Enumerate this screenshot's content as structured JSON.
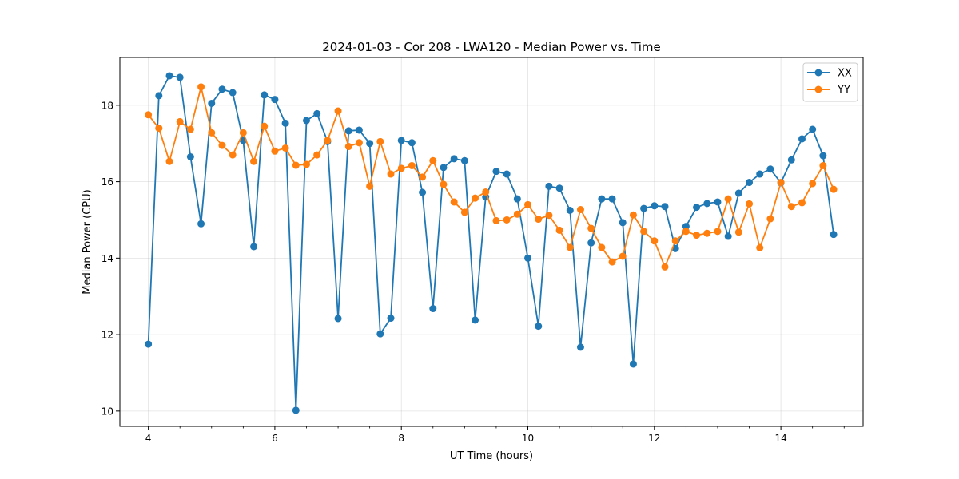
{
  "chart_data": {
    "type": "line",
    "title": "2024-01-03 - Cor 208 - LWA120 - Median Power vs. Time",
    "xlabel": "UT Time (hours)",
    "ylabel": "Median Power (CPU)",
    "xlim": [
      3.55,
      15.3
    ],
    "ylim": [
      9.6,
      19.25
    ],
    "xticks": [
      4,
      6,
      8,
      10,
      12,
      14
    ],
    "xtick_labels": [
      "4",
      "6",
      "8",
      "10",
      "12",
      "14"
    ],
    "yticks": [
      10,
      12,
      14,
      16,
      18
    ],
    "ytick_labels": [
      "10",
      "12",
      "14",
      "16",
      "18"
    ],
    "grid": true,
    "legend_position": "top-right",
    "x": [
      4.0,
      4.1667,
      4.3333,
      4.5,
      4.6667,
      4.8333,
      5.0,
      5.1667,
      5.3333,
      5.5,
      5.6667,
      5.8333,
      6.0,
      6.1667,
      6.3333,
      6.5,
      6.6667,
      6.8333,
      7.0,
      7.1667,
      7.3333,
      7.5,
      7.6667,
      7.8333,
      8.0,
      8.1667,
      8.3333,
      8.5,
      8.6667,
      8.8333,
      9.0,
      9.1667,
      9.3333,
      9.5,
      9.6667,
      9.8333,
      10.0,
      10.1667,
      10.3333,
      10.5,
      10.6667,
      10.8333,
      11.0,
      11.1667,
      11.3333,
      11.5,
      11.6667,
      11.8333,
      12.0,
      12.1667,
      12.3333,
      12.5,
      12.6667,
      12.8333,
      13.0,
      13.1667,
      13.3333,
      13.5,
      13.6667,
      13.8333,
      14.0,
      14.1667,
      14.3333,
      14.5,
      14.6667,
      14.8333
    ],
    "series": [
      {
        "name": "XX",
        "color": "#1f77b4",
        "values": [
          11.75,
          18.25,
          18.77,
          18.73,
          16.65,
          14.9,
          18.05,
          18.42,
          18.33,
          17.08,
          14.3,
          18.27,
          18.15,
          17.53,
          10.02,
          17.6,
          17.78,
          17.05,
          12.42,
          17.33,
          17.35,
          17.0,
          12.02,
          12.43,
          17.08,
          17.02,
          15.72,
          12.68,
          16.37,
          16.6,
          16.55,
          12.38,
          15.6,
          16.27,
          16.2,
          15.55,
          14.0,
          12.22,
          15.88,
          15.83,
          15.25,
          11.67,
          14.4,
          15.55,
          15.55,
          14.93,
          11.23,
          15.3,
          15.37,
          15.35,
          14.25,
          14.83,
          15.33,
          15.43,
          15.47,
          14.57,
          15.7,
          15.98,
          16.2,
          16.33,
          15.97,
          16.57,
          17.12,
          17.37,
          16.68,
          14.62
        ]
      },
      {
        "name": "YY",
        "color": "#ff7f0e",
        "values": [
          17.75,
          17.4,
          16.53,
          17.57,
          17.37,
          18.48,
          17.28,
          16.95,
          16.7,
          17.28,
          16.53,
          17.45,
          16.8,
          16.88,
          16.43,
          16.45,
          16.7,
          17.08,
          17.85,
          16.92,
          17.02,
          15.88,
          17.05,
          16.2,
          16.35,
          16.42,
          16.12,
          16.55,
          15.93,
          15.47,
          15.2,
          15.57,
          15.73,
          14.98,
          15.0,
          15.15,
          15.4,
          15.02,
          15.12,
          14.73,
          14.28,
          15.27,
          14.78,
          14.28,
          13.9,
          14.05,
          15.13,
          14.7,
          14.45,
          13.77,
          14.45,
          14.7,
          14.6,
          14.65,
          14.7,
          15.55,
          14.68,
          15.42,
          14.27,
          15.03,
          15.98,
          15.35,
          15.45,
          15.95,
          16.42,
          15.8
        ]
      }
    ]
  }
}
